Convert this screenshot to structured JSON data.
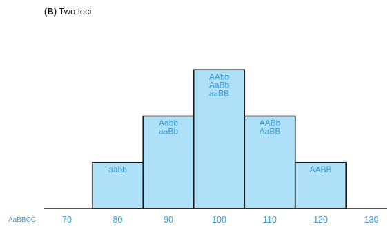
{
  "panel": {
    "letter": "(B)",
    "title": "Two loci"
  },
  "chart_data": {
    "type": "bar",
    "title": "(B) Two loci",
    "row_label": "AaBBCC",
    "x_ticks": [
      70,
      80,
      90,
      100,
      110,
      120,
      130
    ],
    "xlim": [
      65,
      135
    ],
    "ylim": [
      0,
      4
    ],
    "bars": [
      {
        "x": 80,
        "value": 1,
        "genotypes": [
          "aabb"
        ]
      },
      {
        "x": 90,
        "value": 2,
        "genotypes": [
          "Aabb",
          "aaBb"
        ]
      },
      {
        "x": 100,
        "value": 3,
        "genotypes": [
          "AAbb",
          "AaBb",
          "aaBB"
        ]
      },
      {
        "x": 110,
        "value": 2,
        "genotypes": [
          "AABb",
          "AaBB"
        ]
      },
      {
        "x": 120,
        "value": 1,
        "genotypes": [
          "AABB"
        ]
      }
    ],
    "colors": {
      "bar_fill": "#aee0f8",
      "bar_stroke": "#1a1a1a",
      "label": "#3a9ad6"
    }
  }
}
